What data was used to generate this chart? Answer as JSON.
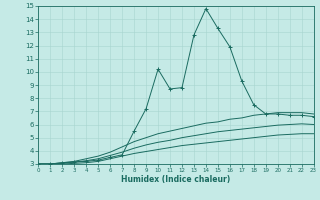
{
  "xlabel": "Humidex (Indice chaleur)",
  "xlim": [
    0,
    23
  ],
  "ylim": [
    3,
    15
  ],
  "xticks": [
    0,
    1,
    2,
    3,
    4,
    5,
    6,
    7,
    8,
    9,
    10,
    11,
    12,
    13,
    14,
    15,
    16,
    17,
    18,
    19,
    20,
    21,
    22,
    23
  ],
  "yticks": [
    3,
    4,
    5,
    6,
    7,
    8,
    9,
    10,
    11,
    12,
    13,
    14,
    15
  ],
  "bg_color": "#c5eae6",
  "grid_color": "#a8d5d0",
  "line_color": "#1a6b60",
  "series_main": {
    "x": [
      0,
      1,
      2,
      3,
      4,
      5,
      6,
      7,
      8,
      9,
      10,
      11,
      12,
      13,
      14,
      15,
      16,
      17,
      18,
      19,
      20,
      21,
      22,
      23
    ],
    "y": [
      3.0,
      3.0,
      3.1,
      3.15,
      3.2,
      3.3,
      3.5,
      3.7,
      5.5,
      7.2,
      10.2,
      8.7,
      8.8,
      12.8,
      14.8,
      13.3,
      11.9,
      9.3,
      7.5,
      6.8,
      6.8,
      6.7,
      6.7,
      6.6
    ]
  },
  "series_upper": {
    "x": [
      0,
      1,
      2,
      3,
      4,
      5,
      6,
      7,
      8,
      9,
      10,
      11,
      12,
      13,
      14,
      15,
      16,
      17,
      18,
      19,
      20,
      21,
      22,
      23
    ],
    "y": [
      3.0,
      3.0,
      3.1,
      3.2,
      3.4,
      3.6,
      3.9,
      4.3,
      4.7,
      5.0,
      5.3,
      5.5,
      5.7,
      5.9,
      6.1,
      6.2,
      6.4,
      6.5,
      6.7,
      6.8,
      6.9,
      6.9,
      6.9,
      6.8
    ]
  },
  "series_mid": {
    "x": [
      0,
      1,
      2,
      3,
      4,
      5,
      6,
      7,
      8,
      9,
      10,
      11,
      12,
      13,
      14,
      15,
      16,
      17,
      18,
      19,
      20,
      21,
      22,
      23
    ],
    "y": [
      3.0,
      3.0,
      3.05,
      3.15,
      3.25,
      3.4,
      3.65,
      3.9,
      4.2,
      4.45,
      4.65,
      4.8,
      5.0,
      5.15,
      5.3,
      5.45,
      5.55,
      5.65,
      5.75,
      5.85,
      5.95,
      6.0,
      6.05,
      6.0
    ]
  },
  "series_lower": {
    "x": [
      0,
      1,
      2,
      3,
      4,
      5,
      6,
      7,
      8,
      9,
      10,
      11,
      12,
      13,
      14,
      15,
      16,
      17,
      18,
      19,
      20,
      21,
      22,
      23
    ],
    "y": [
      3.0,
      3.0,
      3.0,
      3.05,
      3.1,
      3.2,
      3.4,
      3.6,
      3.8,
      3.95,
      4.1,
      4.25,
      4.4,
      4.5,
      4.6,
      4.7,
      4.8,
      4.9,
      5.0,
      5.1,
      5.2,
      5.25,
      5.3,
      5.3
    ]
  }
}
